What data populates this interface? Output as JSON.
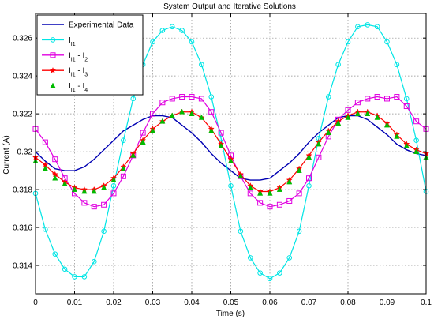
{
  "chart_data": {
    "type": "line",
    "title": "System Output and Iterative Solutions",
    "xlabel": "Time (s)",
    "ylabel": "Current (A)",
    "xlim": [
      0,
      0.1
    ],
    "ylim": [
      0.3125,
      0.3273
    ],
    "x_ticks": [
      "0",
      "0.01",
      "0.02",
      "0.03",
      "0.04",
      "0.05",
      "0.06",
      "0.07",
      "0.08",
      "0.09",
      "0.1"
    ],
    "y_ticks": [
      "0.314",
      "0.316",
      "0.318",
      "0.32",
      "0.322",
      "0.324",
      "0.326"
    ],
    "grid": true,
    "legend_position": "top-left",
    "series": [
      {
        "name": "Experimental Data",
        "label_base": "Experimental Data",
        "color": "#0000b3",
        "marker": "none",
        "x": [
          0,
          0.0025,
          0.005,
          0.0075,
          0.01,
          0.0125,
          0.015,
          0.0175,
          0.02,
          0.0225,
          0.025,
          0.0275,
          0.03,
          0.0325,
          0.035,
          0.0375,
          0.04,
          0.0425,
          0.045,
          0.0475,
          0.05,
          0.0525,
          0.055,
          0.0575,
          0.06,
          0.0625,
          0.065,
          0.0675,
          0.07,
          0.0725,
          0.075,
          0.0775,
          0.08,
          0.0825,
          0.085,
          0.0875,
          0.09,
          0.0925,
          0.095,
          0.0975,
          0.1
        ],
        "y": [
          0.32,
          0.3195,
          0.3191,
          0.319,
          0.319,
          0.3192,
          0.3196,
          0.3201,
          0.3206,
          0.3211,
          0.3214,
          0.3217,
          0.3219,
          0.3219,
          0.3218,
          0.3214,
          0.321,
          0.3205,
          0.3199,
          0.3194,
          0.319,
          0.3186,
          0.3185,
          0.3185,
          0.3186,
          0.319,
          0.3194,
          0.3199,
          0.3205,
          0.321,
          0.3214,
          0.3218,
          0.3219,
          0.3219,
          0.3217,
          0.3213,
          0.3209,
          0.3204,
          0.3201,
          0.3199,
          0.3198
        ]
      },
      {
        "name": "I1",
        "label_base": "I",
        "label_sub": "I1",
        "color": "#00e5e5",
        "marker": "circle",
        "x": [
          0,
          0.0025,
          0.005,
          0.0075,
          0.01,
          0.0125,
          0.015,
          0.0175,
          0.02,
          0.0225,
          0.025,
          0.0275,
          0.03,
          0.0325,
          0.035,
          0.0375,
          0.04,
          0.0425,
          0.045,
          0.0475,
          0.05,
          0.0525,
          0.055,
          0.0575,
          0.06,
          0.0625,
          0.065,
          0.0675,
          0.07,
          0.0725,
          0.075,
          0.0775,
          0.08,
          0.0825,
          0.085,
          0.0875,
          0.09,
          0.0925,
          0.095,
          0.0975,
          0.1
        ],
        "y": [
          0.3178,
          0.3159,
          0.3146,
          0.3138,
          0.3134,
          0.3134,
          0.3142,
          0.3158,
          0.3182,
          0.3206,
          0.3228,
          0.3246,
          0.3258,
          0.3264,
          0.3266,
          0.3264,
          0.3258,
          0.3246,
          0.3229,
          0.3207,
          0.3182,
          0.3158,
          0.3144,
          0.3136,
          0.3133,
          0.3136,
          0.3144,
          0.3158,
          0.3182,
          0.3207,
          0.3229,
          0.3246,
          0.3258,
          0.3266,
          0.3267,
          0.3266,
          0.3258,
          0.3246,
          0.3228,
          0.3206,
          0.3179
        ]
      },
      {
        "name": "I11 - I2",
        "label_base": "I",
        "label_sub": "I1",
        "label_tail": " - I",
        "label_sub2": "2",
        "color": "#e000e0",
        "marker": "square",
        "x": [
          0,
          0.0025,
          0.005,
          0.0075,
          0.01,
          0.0125,
          0.015,
          0.0175,
          0.02,
          0.0225,
          0.025,
          0.0275,
          0.03,
          0.0325,
          0.035,
          0.0375,
          0.04,
          0.0425,
          0.045,
          0.0475,
          0.05,
          0.0525,
          0.055,
          0.0575,
          0.06,
          0.0625,
          0.065,
          0.0675,
          0.07,
          0.0725,
          0.075,
          0.0775,
          0.08,
          0.0825,
          0.085,
          0.0875,
          0.09,
          0.0925,
          0.095,
          0.0975,
          0.1
        ],
        "y": [
          0.3212,
          0.3205,
          0.3196,
          0.3186,
          0.3178,
          0.3173,
          0.3171,
          0.3172,
          0.3178,
          0.3187,
          0.3198,
          0.321,
          0.322,
          0.3226,
          0.3228,
          0.3229,
          0.3229,
          0.3228,
          0.3221,
          0.321,
          0.3198,
          0.3187,
          0.3178,
          0.3173,
          0.3171,
          0.3172,
          0.3174,
          0.3178,
          0.3186,
          0.3197,
          0.3208,
          0.3217,
          0.3222,
          0.3226,
          0.3228,
          0.3229,
          0.3228,
          0.3229,
          0.3224,
          0.3216,
          0.3212
        ]
      },
      {
        "name": "I11 - I3",
        "label_base": "I",
        "label_sub": "I1",
        "label_tail": " - I",
        "label_sub2": "3",
        "color": "#ff0000",
        "marker": "star",
        "x": [
          0,
          0.0025,
          0.005,
          0.0075,
          0.01,
          0.0125,
          0.015,
          0.0175,
          0.02,
          0.0225,
          0.025,
          0.0275,
          0.03,
          0.0325,
          0.035,
          0.0375,
          0.04,
          0.0425,
          0.045,
          0.0475,
          0.05,
          0.0525,
          0.055,
          0.0575,
          0.06,
          0.0625,
          0.065,
          0.0675,
          0.07,
          0.0725,
          0.075,
          0.0775,
          0.08,
          0.0825,
          0.085,
          0.0875,
          0.09,
          0.0925,
          0.095,
          0.0975,
          0.1
        ],
        "y": [
          0.3197,
          0.3193,
          0.3188,
          0.3184,
          0.3181,
          0.318,
          0.318,
          0.3182,
          0.3186,
          0.3192,
          0.3199,
          0.3206,
          0.3212,
          0.3216,
          0.3219,
          0.3221,
          0.3221,
          0.3218,
          0.3212,
          0.3204,
          0.3196,
          0.3188,
          0.3182,
          0.3179,
          0.3179,
          0.3181,
          0.3185,
          0.3191,
          0.3198,
          0.3205,
          0.3211,
          0.3216,
          0.3219,
          0.3221,
          0.3221,
          0.3219,
          0.3215,
          0.3209,
          0.3204,
          0.3201,
          0.3199
        ]
      },
      {
        "name": "I11 - I4",
        "label_base": "I",
        "label_sub": "I1",
        "label_tail": " - I",
        "label_sub2": "4",
        "color": "#00bb00",
        "marker": "triangle",
        "x": [
          0,
          0.0025,
          0.005,
          0.0075,
          0.01,
          0.0125,
          0.015,
          0.0175,
          0.02,
          0.0225,
          0.025,
          0.0275,
          0.03,
          0.0325,
          0.035,
          0.0375,
          0.04,
          0.0425,
          0.045,
          0.0475,
          0.05,
          0.0525,
          0.055,
          0.0575,
          0.06,
          0.0625,
          0.065,
          0.0675,
          0.07,
          0.0725,
          0.075,
          0.0775,
          0.08,
          0.0825,
          0.085,
          0.0875,
          0.09,
          0.0925,
          0.095,
          0.0975,
          0.1
        ],
        "y": [
          0.3195,
          0.3191,
          0.3186,
          0.3183,
          0.318,
          0.3179,
          0.3179,
          0.3181,
          0.3185,
          0.3191,
          0.3198,
          0.3205,
          0.3211,
          0.3216,
          0.3219,
          0.3221,
          0.322,
          0.3218,
          0.3211,
          0.3203,
          0.3195,
          0.3187,
          0.3181,
          0.3178,
          0.3178,
          0.318,
          0.3184,
          0.319,
          0.3197,
          0.3204,
          0.321,
          0.3215,
          0.3218,
          0.322,
          0.322,
          0.3218,
          0.3214,
          0.3208,
          0.3203,
          0.32,
          0.3197
        ]
      }
    ]
  }
}
